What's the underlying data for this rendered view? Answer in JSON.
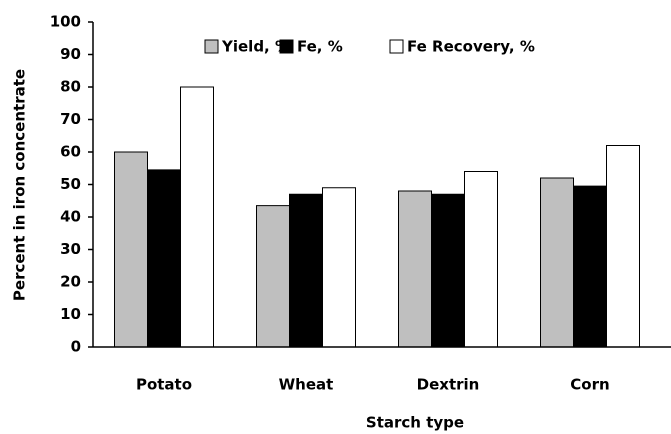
{
  "chart_data": {
    "type": "bar",
    "categories": [
      "Potato",
      "Wheat",
      "Dextrin",
      "Corn"
    ],
    "series": [
      {
        "name": "Yield, %",
        "color": "#bfbfbf",
        "values": [
          60,
          43.5,
          48,
          52
        ]
      },
      {
        "name": "Fe, %",
        "color": "#000000",
        "values": [
          54.5,
          47,
          47,
          49.5
        ]
      },
      {
        "name": "Fe Recovery, %",
        "color": "#ffffff",
        "values": [
          80,
          49,
          54,
          62
        ]
      }
    ],
    "ylim": [
      0,
      100
    ],
    "yticks": [
      0,
      10,
      20,
      30,
      40,
      50,
      60,
      70,
      80,
      90,
      100
    ],
    "y_label": "Percent in iron concentrate",
    "x_label": "Starch type",
    "grid": false,
    "legend": "top"
  }
}
